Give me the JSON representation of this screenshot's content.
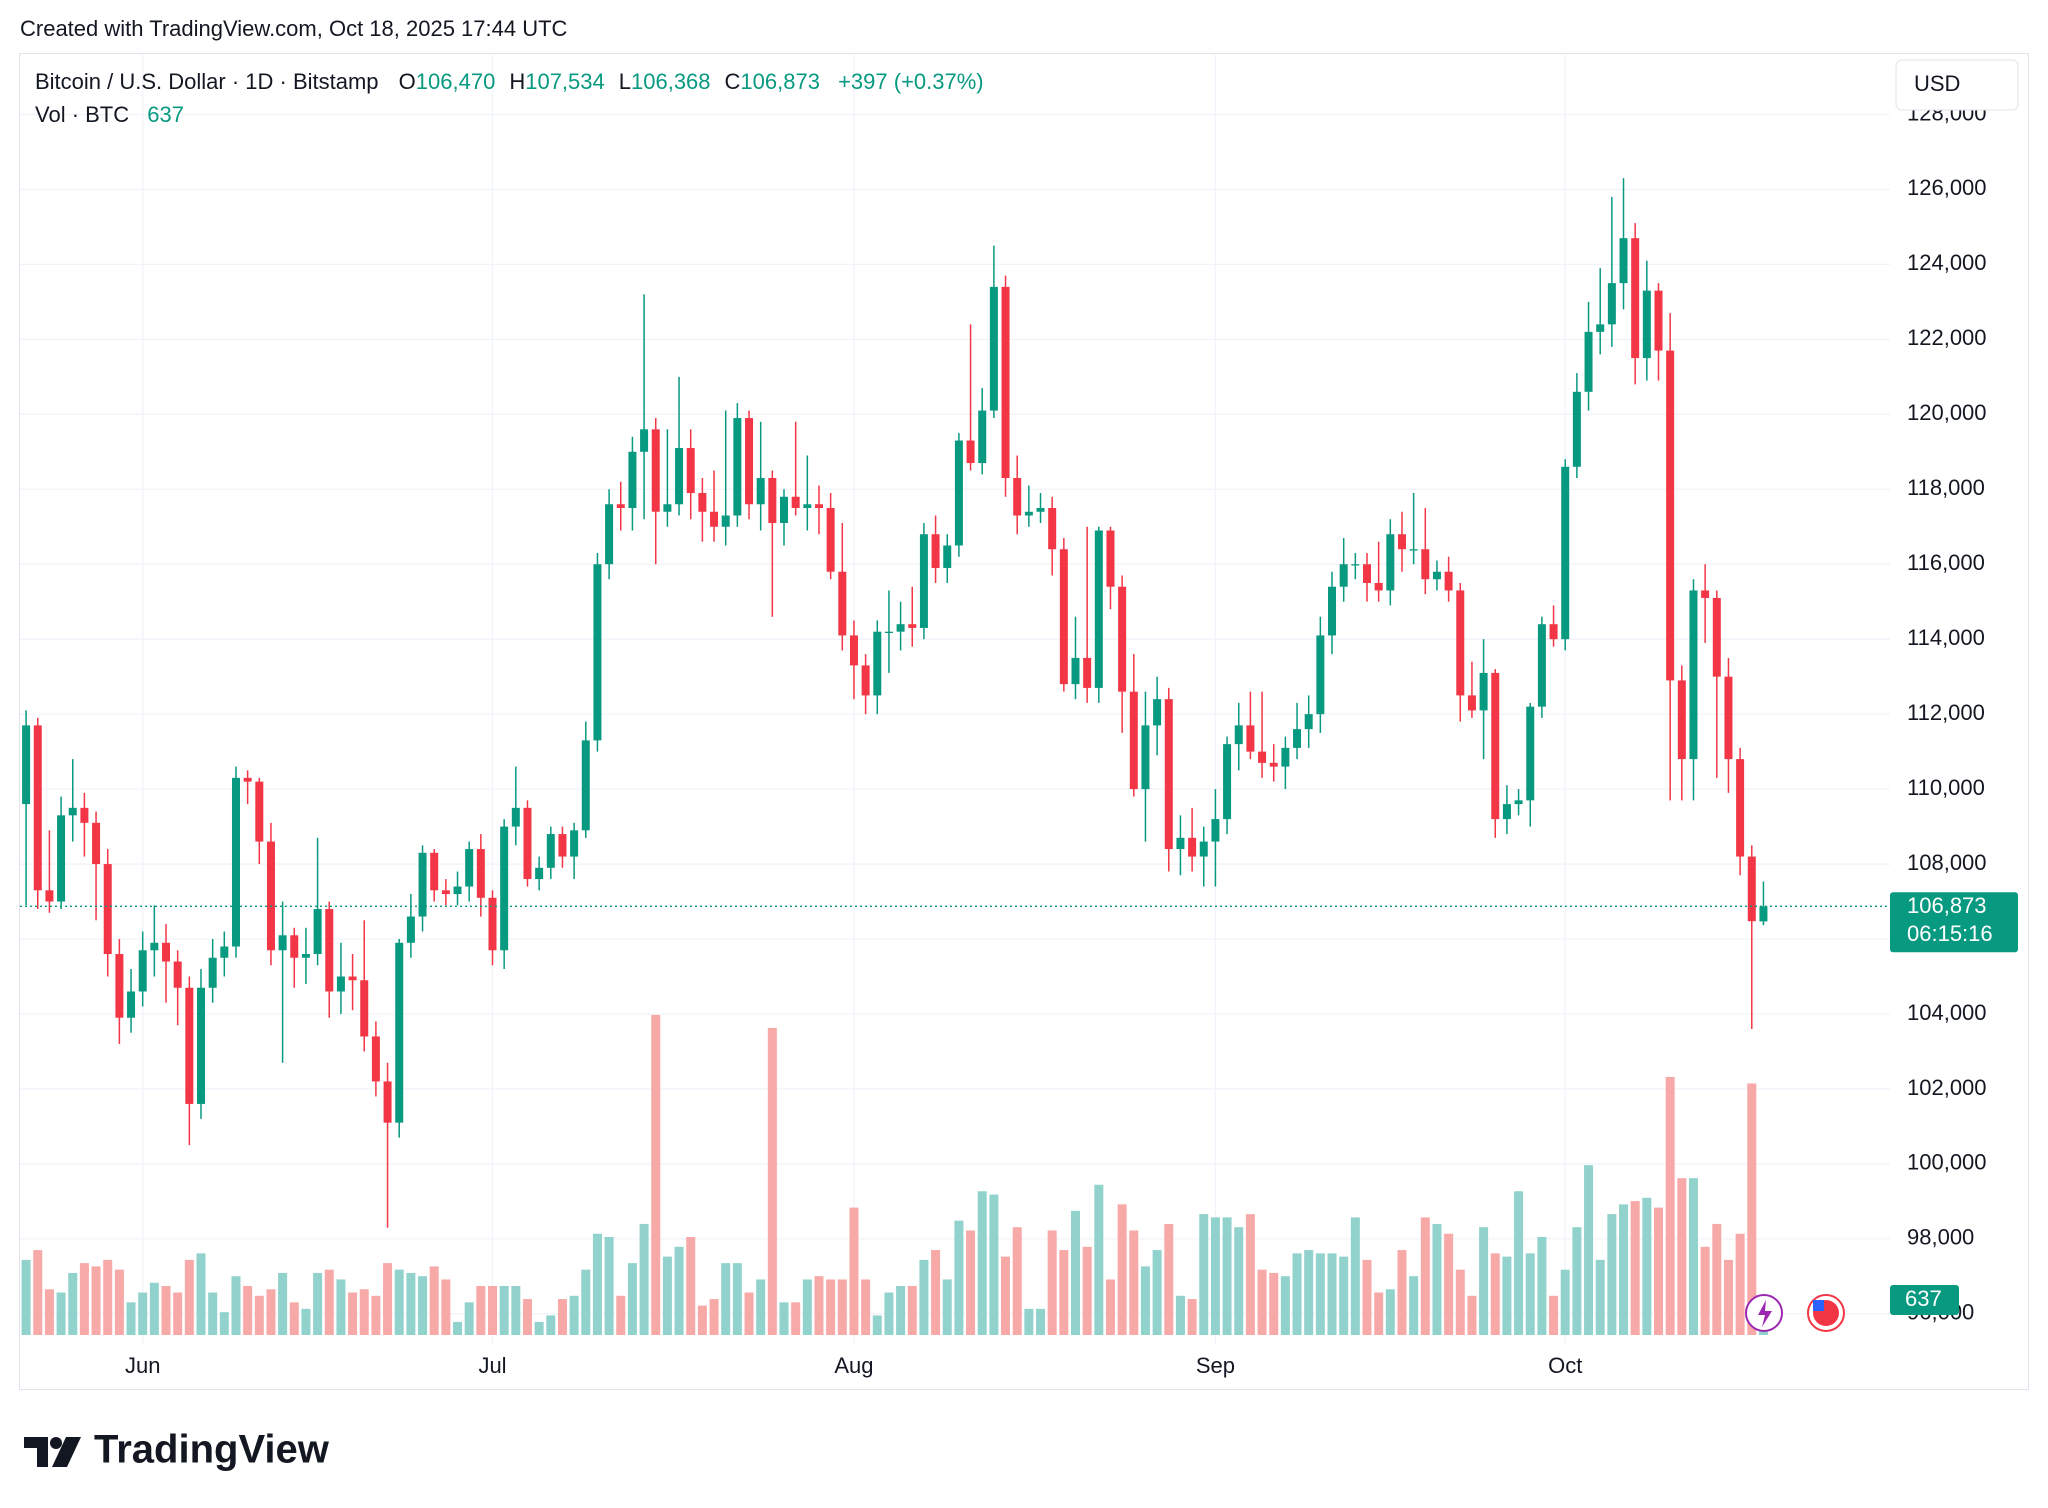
{
  "header": "Created with TradingView.com, Oct 18, 2025 17:44 UTC",
  "brand": "TradingView",
  "currency": "USD",
  "chart_data": {
    "type": "candlestick",
    "legend": {
      "symbol": "Bitcoin / U.S. Dollar · 1D · Bitstamp",
      "fields": [
        {
          "key": "O",
          "value": "106,470"
        },
        {
          "key": "H",
          "value": "107,534"
        },
        {
          "key": "L",
          "value": "106,368"
        },
        {
          "key": "C",
          "value": "106,873"
        }
      ],
      "change": "+397 (+0.37%)",
      "volume_title": "Vol · BTC"
    },
    "up_color": "#089981",
    "down_color": "#f23645",
    "volume_up_color": "#92d2cc",
    "volume_down_color": "#f7a9a7",
    "grid": true,
    "ylim": [
      129600,
      95200
    ],
    "yticks": [
      {
        "value": 96000,
        "label": "96,000"
      },
      {
        "value": 98000,
        "label": "98,000"
      },
      {
        "value": 100000,
        "label": "100,000"
      },
      {
        "value": 102000,
        "label": "102,000"
      },
      {
        "value": 104000,
        "label": "104,000"
      },
      {
        "value": 106000,
        "label": "106,000"
      },
      {
        "value": 108000,
        "label": "108,000"
      },
      {
        "value": 110000,
        "label": "110,000"
      },
      {
        "value": 112000,
        "label": "112,000"
      },
      {
        "value": 114000,
        "label": "114,000"
      },
      {
        "value": 116000,
        "label": "116,000"
      },
      {
        "value": 118000,
        "label": "118,000"
      },
      {
        "value": 120000,
        "label": "120,000"
      },
      {
        "value": 122000,
        "label": "122,000"
      },
      {
        "value": 124000,
        "label": "124,000"
      },
      {
        "value": 126000,
        "label": "126,000"
      },
      {
        "value": 128000,
        "label": "128,000"
      }
    ],
    "vlim": [
      0,
      12000
    ],
    "last_price": {
      "value": 106873,
      "label": "106,873"
    },
    "countdown": "06:15:16",
    "categories": [
      null,
      null,
      null,
      null,
      null,
      null,
      null,
      null,
      null,
      null,
      "Jun",
      null,
      null,
      null,
      null,
      null,
      null,
      null,
      null,
      null,
      null,
      null,
      null,
      null,
      null,
      null,
      null,
      null,
      null,
      null,
      null,
      null,
      null,
      null,
      null,
      null,
      null,
      null,
      null,
      null,
      "Jul",
      null,
      null,
      null,
      null,
      null,
      null,
      null,
      null,
      null,
      null,
      null,
      null,
      null,
      null,
      null,
      null,
      null,
      null,
      null,
      null,
      null,
      null,
      null,
      null,
      null,
      null,
      null,
      null,
      null,
      null,
      "Aug",
      null,
      null,
      null,
      null,
      null,
      null,
      null,
      null,
      null,
      null,
      null,
      null,
      null,
      null,
      null,
      null,
      null,
      null,
      null,
      null,
      null,
      null,
      null,
      null,
      null,
      null,
      null,
      null,
      null,
      null,
      "Sep",
      null,
      null,
      null,
      null,
      null,
      null,
      null,
      null,
      null,
      null,
      null,
      null,
      null,
      null,
      null,
      null,
      null,
      null,
      null,
      null,
      null,
      null,
      null,
      null,
      null,
      null,
      null,
      null,
      null,
      "Oct",
      null,
      null,
      null,
      null,
      null,
      null,
      null,
      null,
      null,
      null,
      null,
      null,
      null,
      null,
      null,
      null,
      null
    ],
    "ohlc": [
      [
        109600,
        112100,
        106900,
        111700
      ],
      [
        111700,
        111900,
        106800,
        107300
      ],
      [
        107300,
        108900,
        106700,
        107000
      ],
      [
        107000,
        109800,
        106800,
        109300
      ],
      [
        109300,
        110800,
        108600,
        109500
      ],
      [
        109500,
        109900,
        108200,
        109100
      ],
      [
        109100,
        109400,
        106500,
        108000
      ],
      [
        108000,
        108400,
        105000,
        105600
      ],
      [
        105600,
        106000,
        103200,
        103900
      ],
      [
        103900,
        105200,
        103500,
        104600
      ],
      [
        104600,
        106200,
        104200,
        105700
      ],
      [
        105700,
        106900,
        105000,
        105900
      ],
      [
        105900,
        106400,
        104300,
        105400
      ],
      [
        105400,
        105700,
        103700,
        104700
      ],
      [
        104700,
        105000,
        100500,
        101600
      ],
      [
        101600,
        105200,
        101200,
        104700
      ],
      [
        104700,
        106000,
        104300,
        105500
      ],
      [
        105500,
        106200,
        105000,
        105800
      ],
      [
        105800,
        110600,
        105500,
        110300
      ],
      [
        110300,
        110500,
        109600,
        110200
      ],
      [
        110200,
        110300,
        108000,
        108600
      ],
      [
        108600,
        109100,
        105300,
        105700
      ],
      [
        105700,
        107000,
        102700,
        106100
      ],
      [
        106100,
        106300,
        104700,
        105500
      ],
      [
        105500,
        106300,
        104800,
        105600
      ],
      [
        105600,
        108700,
        105300,
        106800
      ],
      [
        106800,
        107000,
        103900,
        104600
      ],
      [
        104600,
        105900,
        104000,
        105000
      ],
      [
        105000,
        105600,
        104100,
        104900
      ],
      [
        104900,
        106500,
        103000,
        103400
      ],
      [
        103400,
        103800,
        101800,
        102200
      ],
      [
        102200,
        102700,
        98300,
        101100
      ],
      [
        101100,
        106000,
        100700,
        105900
      ],
      [
        105900,
        107200,
        105500,
        106600
      ],
      [
        106600,
        108500,
        106200,
        108300
      ],
      [
        108300,
        108400,
        107000,
        107300
      ],
      [
        107300,
        107600,
        106900,
        107200
      ],
      [
        107200,
        107800,
        106900,
        107400
      ],
      [
        107400,
        108600,
        107000,
        108400
      ],
      [
        108400,
        108800,
        106600,
        107100
      ],
      [
        107100,
        107300,
        105300,
        105700
      ],
      [
        105700,
        109200,
        105200,
        109000
      ],
      [
        109000,
        110600,
        108500,
        109500
      ],
      [
        109500,
        109700,
        107400,
        107600
      ],
      [
        107600,
        108200,
        107300,
        107900
      ],
      [
        107900,
        109000,
        107600,
        108800
      ],
      [
        108800,
        109000,
        107900,
        108200
      ],
      [
        108200,
        109100,
        107600,
        108900
      ],
      [
        108900,
        111800,
        108700,
        111300
      ],
      [
        111300,
        116300,
        111000,
        116000
      ],
      [
        116000,
        118000,
        115600,
        117600
      ],
      [
        117600,
        118200,
        116900,
        117500
      ],
      [
        117500,
        119400,
        116900,
        119000
      ],
      [
        119000,
        123200,
        117200,
        119600
      ],
      [
        119600,
        119900,
        116000,
        117400
      ],
      [
        117400,
        119600,
        117000,
        117600
      ],
      [
        117600,
        121000,
        117300,
        119100
      ],
      [
        119100,
        119600,
        117200,
        117900
      ],
      [
        117900,
        118300,
        116600,
        117400
      ],
      [
        117400,
        118500,
        116600,
        117000
      ],
      [
        117000,
        120100,
        116500,
        117300
      ],
      [
        117300,
        120300,
        117000,
        119900
      ],
      [
        119900,
        120100,
        117200,
        117600
      ],
      [
        117600,
        119800,
        116900,
        118300
      ],
      [
        118300,
        118500,
        114600,
        117100
      ],
      [
        117100,
        118000,
        116500,
        117800
      ],
      [
        117800,
        119800,
        117300,
        117500
      ],
      [
        117500,
        118900,
        116900,
        117600
      ],
      [
        117600,
        118100,
        116800,
        117500
      ],
      [
        117500,
        117900,
        115600,
        115800
      ],
      [
        115800,
        117100,
        113700,
        114100
      ],
      [
        114100,
        114500,
        112400,
        113300
      ],
      [
        113300,
        113600,
        112000,
        112500
      ],
      [
        112500,
        114500,
        112000,
        114200
      ],
      [
        114200,
        115300,
        113100,
        114200
      ],
      [
        114200,
        115000,
        113700,
        114400
      ],
      [
        114400,
        115400,
        113800,
        114300
      ],
      [
        114300,
        117100,
        114000,
        116800
      ],
      [
        116800,
        117300,
        115500,
        115900
      ],
      [
        115900,
        116800,
        115500,
        116500
      ],
      [
        116500,
        119500,
        116200,
        119300
      ],
      [
        119300,
        122400,
        118500,
        118700
      ],
      [
        118700,
        120700,
        118400,
        120100
      ],
      [
        120100,
        124500,
        119900,
        123400
      ],
      [
        123400,
        123700,
        117800,
        118300
      ],
      [
        118300,
        118900,
        116800,
        117300
      ],
      [
        117300,
        118100,
        117000,
        117400
      ],
      [
        117400,
        117900,
        117100,
        117500
      ],
      [
        117500,
        117800,
        115700,
        116400
      ],
      [
        116400,
        116700,
        112600,
        112800
      ],
      [
        112800,
        114600,
        112400,
        113500
      ],
      [
        113500,
        117000,
        112300,
        112700
      ],
      [
        112700,
        117000,
        112300,
        116900
      ],
      [
        116900,
        117000,
        114800,
        115400
      ],
      [
        115400,
        115700,
        111500,
        112600
      ],
      [
        112600,
        113600,
        109800,
        110000
      ],
      [
        110000,
        112600,
        108600,
        111700
      ],
      [
        111700,
        113000,
        110900,
        112400
      ],
      [
        112400,
        112700,
        107800,
        108400
      ],
      [
        108400,
        109300,
        107700,
        108700
      ],
      [
        108700,
        109500,
        107800,
        108200
      ],
      [
        108200,
        109000,
        107400,
        108600
      ],
      [
        108600,
        110000,
        107400,
        109200
      ],
      [
        109200,
        111400,
        108800,
        111200
      ],
      [
        111200,
        112300,
        110500,
        111700
      ],
      [
        111700,
        112600,
        110800,
        111000
      ],
      [
        111000,
        112600,
        110300,
        110700
      ],
      [
        110700,
        111200,
        110200,
        110600
      ],
      [
        110600,
        111400,
        110000,
        111100
      ],
      [
        111100,
        112300,
        110800,
        111600
      ],
      [
        111600,
        112500,
        111100,
        112000
      ],
      [
        112000,
        114600,
        111500,
        114100
      ],
      [
        114100,
        115800,
        113600,
        115400
      ],
      [
        115400,
        116700,
        115000,
        116000
      ],
      [
        116000,
        116300,
        115600,
        116000
      ],
      [
        116000,
        116300,
        115000,
        115500
      ],
      [
        115500,
        116600,
        115000,
        115300
      ],
      [
        115300,
        117200,
        114900,
        116800
      ],
      [
        116800,
        117400,
        115800,
        116400
      ],
      [
        116400,
        117900,
        116000,
        116400
      ],
      [
        116400,
        117500,
        115200,
        115600
      ],
      [
        115600,
        116100,
        115300,
        115800
      ],
      [
        115800,
        116200,
        115000,
        115300
      ],
      [
        115300,
        115500,
        111800,
        112500
      ],
      [
        112500,
        113400,
        111900,
        112100
      ],
      [
        112100,
        114000,
        110800,
        113100
      ],
      [
        113100,
        113200,
        108700,
        109200
      ],
      [
        109200,
        110100,
        108800,
        109600
      ],
      [
        109600,
        110000,
        109300,
        109700
      ],
      [
        109700,
        112300,
        109000,
        112200
      ],
      [
        112200,
        114600,
        111900,
        114400
      ],
      [
        114400,
        114900,
        113800,
        114000
      ],
      [
        114000,
        118800,
        113700,
        118600
      ],
      [
        118600,
        121100,
        118300,
        120600
      ],
      [
        120600,
        123000,
        120100,
        122200
      ],
      [
        122200,
        123900,
        121600,
        122400
      ],
      [
        122400,
        125800,
        121800,
        123500
      ],
      [
        123500,
        126300,
        122800,
        124700
      ],
      [
        124700,
        125100,
        120800,
        121500
      ],
      [
        121500,
        124100,
        120900,
        123300
      ],
      [
        123300,
        123500,
        120900,
        121700
      ],
      [
        121700,
        122700,
        109700,
        112900
      ],
      [
        112900,
        113300,
        109700,
        110800
      ],
      [
        110800,
        115600,
        109700,
        115300
      ],
      [
        115300,
        116000,
        113900,
        115100
      ],
      [
        115100,
        115300,
        110300,
        113000
      ],
      [
        113000,
        113500,
        109900,
        110800
      ],
      [
        110800,
        111100,
        107700,
        108200
      ],
      [
        108200,
        108500,
        103600,
        106476
      ],
      [
        106470,
        107534,
        106368,
        106873
      ]
    ],
    "volume": [
      2300,
      2600,
      1400,
      1300,
      1900,
      2200,
      2100,
      2300,
      2000,
      1000,
      1300,
      1600,
      1500,
      1300,
      2300,
      2500,
      1300,
      700,
      1800,
      1500,
      1200,
      1400,
      1900,
      1000,
      800,
      1900,
      2000,
      1700,
      1300,
      1400,
      1200,
      2200,
      2000,
      1900,
      1800,
      2100,
      1700,
      400,
      1000,
      1500,
      1500,
      1500,
      1500,
      1100,
      400,
      600,
      1100,
      1200,
      2000,
      3100,
      3000,
      1200,
      2200,
      3400,
      9800,
      2400,
      2700,
      3000,
      900,
      1100,
      2200,
      2200,
      1300,
      1700,
      9400,
      1000,
      1000,
      1700,
      1800,
      1700,
      1700,
      3900,
      1700,
      600,
      1300,
      1500,
      1500,
      2300,
      2600,
      1700,
      3500,
      3200,
      4400,
      4300,
      2400,
      3300,
      800,
      800,
      3200,
      2600,
      3800,
      2700,
      4600,
      1700,
      4000,
      3200,
      2100,
      2600,
      3400,
      1200,
      1100,
      3700,
      3600,
      3600,
      3300,
      3700,
      2000,
      1900,
      1800,
      2500,
      2600,
      2500,
      2500,
      2400,
      3600,
      2300,
      1300,
      1400,
      2600,
      1800,
      3600,
      3400,
      3100,
      2000,
      1200,
      3300,
      2500,
      2400,
      4400,
      2500,
      3000,
      1200,
      2000,
      3300,
      5200,
      2300,
      3700,
      4000,
      4100,
      4200,
      3900,
      7900,
      4800,
      4800,
      2700,
      3400,
      2300,
      3100,
      7700,
      637
    ]
  }
}
